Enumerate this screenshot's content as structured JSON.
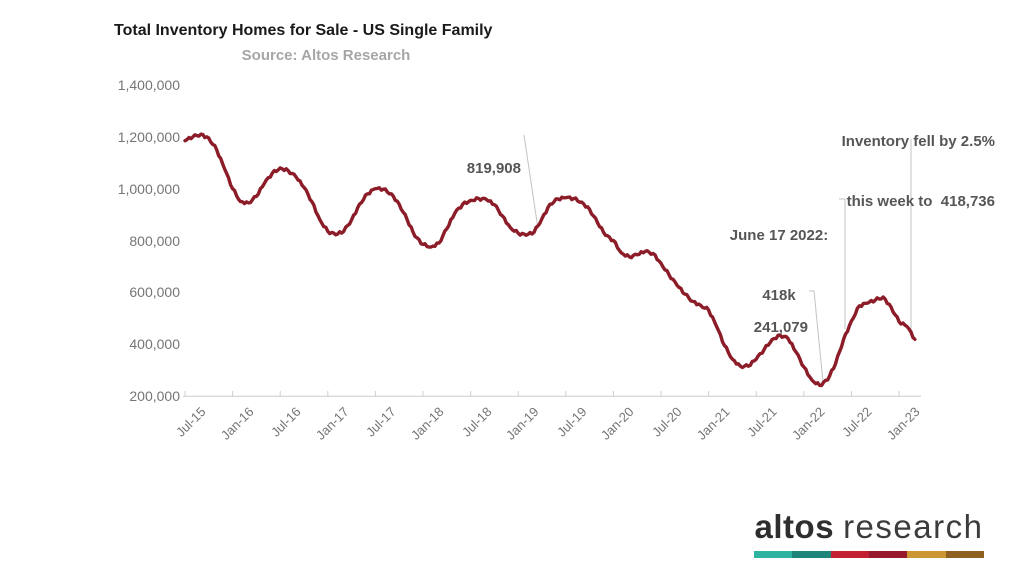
{
  "header": {
    "title": "Total Inventory Homes for Sale - US Single Family",
    "subtitle": "Source: Altos Research"
  },
  "annotations": {
    "low_2019": "819,908",
    "june_2022_line1": "June 17 2022:",
    "june_2022_line2": "418k",
    "latest_line1": "Inventory fell by 2.5%",
    "latest_line2": "this week to  418,736",
    "low_2022": "241,079"
  },
  "logo": {
    "word1": "altos",
    "word2": "research",
    "bar_colors": [
      "#2fb3a1",
      "#1f8578",
      "#c22032",
      "#97192b",
      "#cc9633",
      "#8d601f"
    ]
  },
  "chart_data": {
    "type": "line",
    "title": "Total Inventory Homes for Sale - US Single Family",
    "subtitle": "Source: Altos Research",
    "xlabel": "",
    "ylabel": "",
    "grid": false,
    "legend": false,
    "line_color": "#8B1C28",
    "axis_color": "#d9d9d9",
    "ylim": [
      200000,
      1400000
    ],
    "y_tick_values": [
      1400000,
      1200000,
      1000000,
      800000,
      600000,
      400000,
      200000
    ],
    "y_tick_labels": [
      "1,400,000",
      "1,200,000",
      "1,000,000",
      "800,000",
      "600,000",
      "400,000",
      "200,000"
    ],
    "x_tick_labels": [
      "Jul-15",
      "Jan-16",
      "Jul-16",
      "Jan-17",
      "Jul-17",
      "Jan-18",
      "Jul-18",
      "Jan-19",
      "Jul-19",
      "Jan-20",
      "Jul-20",
      "Jan-21",
      "Jul-21",
      "Jan-22",
      "Jul-22",
      "Jan-23"
    ],
    "x": [
      "Jul-15",
      "Aug-15",
      "Sep-15",
      "Oct-15",
      "Nov-15",
      "Dec-15",
      "Jan-16",
      "Feb-16",
      "Mar-16",
      "Apr-16",
      "May-16",
      "Jun-16",
      "Jul-16",
      "Aug-16",
      "Sep-16",
      "Oct-16",
      "Nov-16",
      "Dec-16",
      "Jan-17",
      "Feb-17",
      "Mar-17",
      "Apr-17",
      "May-17",
      "Jun-17",
      "Jul-17",
      "Aug-17",
      "Sep-17",
      "Oct-17",
      "Nov-17",
      "Dec-17",
      "Jan-18",
      "Feb-18",
      "Mar-18",
      "Apr-18",
      "May-18",
      "Jun-18",
      "Jul-18",
      "Aug-18",
      "Sep-18",
      "Oct-18",
      "Nov-18",
      "Dec-18",
      "Jan-19",
      "Feb-19",
      "Mar-19",
      "Apr-19",
      "May-19",
      "Jun-19",
      "Jul-19",
      "Aug-19",
      "Sep-19",
      "Oct-19",
      "Nov-19",
      "Dec-19",
      "Jan-20",
      "Feb-20",
      "Mar-20",
      "Apr-20",
      "May-20",
      "Jun-20",
      "Jul-20",
      "Aug-20",
      "Sep-20",
      "Oct-20",
      "Nov-20",
      "Dec-20",
      "Jan-21",
      "Feb-21",
      "Mar-21",
      "Apr-21",
      "May-21",
      "Jun-21",
      "Jul-21",
      "Aug-21",
      "Sep-21",
      "Oct-21",
      "Nov-21",
      "Dec-21",
      "Jan-22",
      "Feb-22",
      "Mar-22",
      "Apr-22",
      "May-22",
      "Jun-22",
      "Jul-22",
      "Aug-22",
      "Sep-22",
      "Oct-22",
      "Nov-22",
      "Dec-22",
      "Jan-23",
      "Feb-23",
      "Mar-23"
    ],
    "series": [
      {
        "name": "Total Inventory US Single Family",
        "values": [
          1185000,
          1200000,
          1210000,
          1195000,
          1150000,
          1075000,
          1000000,
          950000,
          945000,
          970000,
          1020000,
          1060000,
          1080000,
          1070000,
          1045000,
          1005000,
          950000,
          880000,
          835000,
          822000,
          835000,
          880000,
          940000,
          980000,
          1000000,
          998000,
          980000,
          940000,
          880000,
          815000,
          785000,
          775000,
          790000,
          845000,
          905000,
          940000,
          955000,
          962000,
          958000,
          938000,
          895000,
          850000,
          828000,
          819908,
          832000,
          885000,
          940000,
          960000,
          965000,
          962000,
          948000,
          920000,
          868000,
          820000,
          800000,
          752000,
          737000,
          745000,
          758000,
          750000,
          712000,
          668000,
          628000,
          593000,
          565000,
          550000,
          532000,
          468000,
          395000,
          342000,
          315000,
          315000,
          342000,
          380000,
          418000,
          435000,
          422000,
          370000,
          312000,
          262000,
          241079,
          262000,
          325000,
          418000,
          490000,
          548000,
          558000,
          570000,
          582000,
          543000,
          486000,
          468000,
          418736
        ]
      }
    ],
    "callouts": [
      {
        "label": "819,908",
        "x": "Feb-19",
        "value": 819908
      },
      {
        "label": "241,079",
        "x": "Mar-22",
        "value": 241079
      },
      {
        "label": "June 17 2022: 418k",
        "x": "Jun-22",
        "value": 418000
      },
      {
        "label": "Inventory fell by 2.5% this week to 418,736",
        "x": "Mar-23",
        "value": 418736
      }
    ]
  }
}
